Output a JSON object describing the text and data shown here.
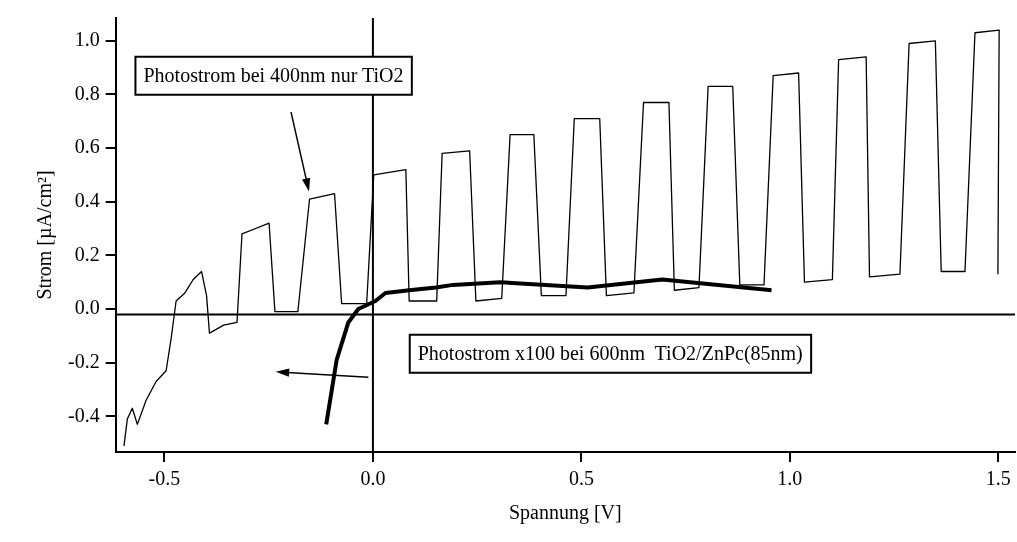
{
  "chart_data": {
    "type": "line",
    "xlabel": "Spannung [V]",
    "ylabel": "Strom [µA/cm²]",
    "xlim": [
      -0.617,
      1.54
    ],
    "ylim": [
      -0.533,
      1.085
    ],
    "xticks": [
      {
        "value": -0.5,
        "label": "-0.5"
      },
      {
        "value": 0,
        "label": "0.0"
      },
      {
        "value": 0.5,
        "label": "0.5"
      },
      {
        "value": 1,
        "label": "1.0"
      },
      {
        "value": 1.5,
        "label": "1.5"
      }
    ],
    "yticks": [
      {
        "value": -0.4,
        "label": "-0.4"
      },
      {
        "value": -0.2,
        "label": "-0.2"
      },
      {
        "value": 0,
        "label": "0.0"
      },
      {
        "value": 0.2,
        "label": "0.2"
      },
      {
        "value": 0.4,
        "label": "0.4"
      },
      {
        "value": 0.6,
        "label": "0.6"
      },
      {
        "value": 0.8,
        "label": "0.8"
      },
      {
        "value": 1,
        "label": "1.0"
      }
    ],
    "grid": false,
    "legend": false,
    "marker": "none",
    "ref_lines": [
      {
        "axis": "x",
        "value": 0,
        "color": "#000000"
      },
      {
        "axis": "y",
        "value": -0.02,
        "color": "#000000"
      }
    ],
    "series": [
      {
        "color": "#000000",
        "x": [
          -0.597,
          -0.589,
          -0.577,
          -0.565,
          -0.544,
          -0.52,
          -0.496,
          -0.484,
          -0.472,
          -0.451,
          -0.431,
          -0.411,
          -0.399,
          -0.392,
          -0.358,
          -0.326,
          -0.314,
          -0.249,
          -0.235,
          -0.18,
          -0.152,
          -0.092,
          -0.075,
          -0.015,
          0.002,
          0.079,
          0.087,
          0.153,
          0.166,
          0.232,
          0.247,
          0.309,
          0.329,
          0.386,
          0.404,
          0.463,
          0.483,
          0.544,
          0.56,
          0.626,
          0.649,
          0.71,
          0.723,
          0.782,
          0.804,
          0.863,
          0.88,
          0.938,
          0.96,
          1.021,
          1.035,
          1.102,
          1.117,
          1.183,
          1.191,
          1.264,
          1.286,
          1.349,
          1.363,
          1.42,
          1.444,
          1.502,
          1.499
        ],
        "values": [
          -0.51,
          -0.41,
          -0.37,
          -0.43,
          -0.34,
          -0.27,
          -0.23,
          -0.11,
          0.03,
          0.06,
          0.11,
          0.14,
          0.05,
          -0.09,
          -0.06,
          -0.05,
          0.28,
          0.32,
          -0.01,
          -0.01,
          0.41,
          0.43,
          0.02,
          0.02,
          0.5,
          0.52,
          0.03,
          0.03,
          0.58,
          0.59,
          0.03,
          0.04,
          0.65,
          0.65,
          0.05,
          0.05,
          0.71,
          0.71,
          0.05,
          0.06,
          0.77,
          0.77,
          0.07,
          0.08,
          0.83,
          0.83,
          0.09,
          0.09,
          0.87,
          0.88,
          0.1,
          0.11,
          0.93,
          0.94,
          0.12,
          0.13,
          0.99,
          1.0,
          0.14,
          0.14,
          1.03,
          1.04,
          0.13
        ]
      },
      {
        "color": "#000000",
        "x": [
          -0.112,
          -0.087,
          -0.059,
          -0.035,
          0.006,
          0.03,
          0.087,
          0.151,
          0.192,
          0.305,
          0.515,
          0.694,
          0.956
        ],
        "values": [
          -0.43,
          -0.19,
          -0.05,
          0.0,
          0.03,
          0.06,
          0.07,
          0.08,
          0.09,
          0.1,
          0.08,
          0.11,
          0.07
        ]
      }
    ],
    "annotations": [
      "Photostrom bei 400nm nur TiO2",
      "Photostrom x100 bei 600nm  TiO2/ZnPc(85nm)"
    ]
  }
}
